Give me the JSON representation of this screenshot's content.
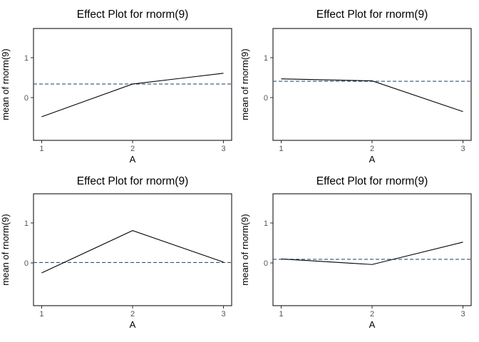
{
  "page": {
    "background": "#ffffff",
    "text_color": "#000000",
    "tick_label_color": "#555555",
    "panel_border_color": "#2a2a2a"
  },
  "chart_data": [
    {
      "type": "line",
      "title": "Effect Plot for rnorm(9)",
      "xlabel": "A",
      "ylabel": "mean of rnorm(9)",
      "x": [
        1,
        2,
        3
      ],
      "x_tick_labels": [
        "1",
        "2",
        "3"
      ],
      "y_tick_values": [
        0,
        1
      ],
      "y_tick_labels": [
        "0",
        "1"
      ],
      "xlim": [
        0.91,
        3.09
      ],
      "ylim": [
        -1.07,
        1.73
      ],
      "grid": false,
      "legend": "none",
      "series": [
        {
          "name": "effect",
          "values": [
            -0.48,
            0.34,
            0.61
          ]
        }
      ],
      "reference_line_y": 0.34,
      "reference_line_style": "dashed",
      "line_color": "#000000",
      "reference_line_color": "#31517e"
    },
    {
      "type": "line",
      "title": "Effect Plot for rnorm(9)",
      "xlabel": "A",
      "ylabel": "mean of rnorm(9)",
      "x": [
        1,
        2,
        3
      ],
      "x_tick_labels": [
        "1",
        "2",
        "3"
      ],
      "y_tick_values": [
        0,
        1
      ],
      "y_tick_labels": [
        "0",
        "1"
      ],
      "xlim": [
        0.91,
        3.09
      ],
      "ylim": [
        -1.07,
        1.73
      ],
      "grid": false,
      "legend": "none",
      "series": [
        {
          "name": "effect",
          "values": [
            0.47,
            0.42,
            -0.35
          ]
        }
      ],
      "reference_line_y": 0.41,
      "reference_line_style": "dashed",
      "line_color": "#000000",
      "reference_line_color": "#31517e"
    },
    {
      "type": "line",
      "title": "Effect Plot for rnorm(9)",
      "xlabel": "A",
      "ylabel": "mean of rnorm(9)",
      "x": [
        1,
        2,
        3
      ],
      "x_tick_labels": [
        "1",
        "2",
        "3"
      ],
      "y_tick_values": [
        0,
        1
      ],
      "y_tick_labels": [
        "0",
        "1"
      ],
      "xlim": [
        0.91,
        3.09
      ],
      "ylim": [
        -1.07,
        1.73
      ],
      "grid": false,
      "legend": "none",
      "series": [
        {
          "name": "effect",
          "values": [
            -0.25,
            0.81,
            0.02
          ]
        }
      ],
      "reference_line_y": 0.01,
      "reference_line_style": "dashed",
      "line_color": "#000000",
      "reference_line_color": "#31517e"
    },
    {
      "type": "line",
      "title": "Effect Plot for rnorm(9)",
      "xlabel": "A",
      "ylabel": "mean of rnorm(9)",
      "x": [
        1,
        2,
        3
      ],
      "x_tick_labels": [
        "1",
        "2",
        "3"
      ],
      "y_tick_values": [
        0,
        1
      ],
      "y_tick_labels": [
        "0",
        "1"
      ],
      "xlim": [
        0.91,
        3.09
      ],
      "ylim": [
        -1.07,
        1.73
      ],
      "grid": false,
      "legend": "none",
      "series": [
        {
          "name": "effect",
          "values": [
            0.1,
            -0.04,
            0.52
          ]
        }
      ],
      "reference_line_y": 0.09,
      "reference_line_style": "dashed",
      "line_color": "#000000",
      "reference_line_color": "#31517e"
    }
  ]
}
